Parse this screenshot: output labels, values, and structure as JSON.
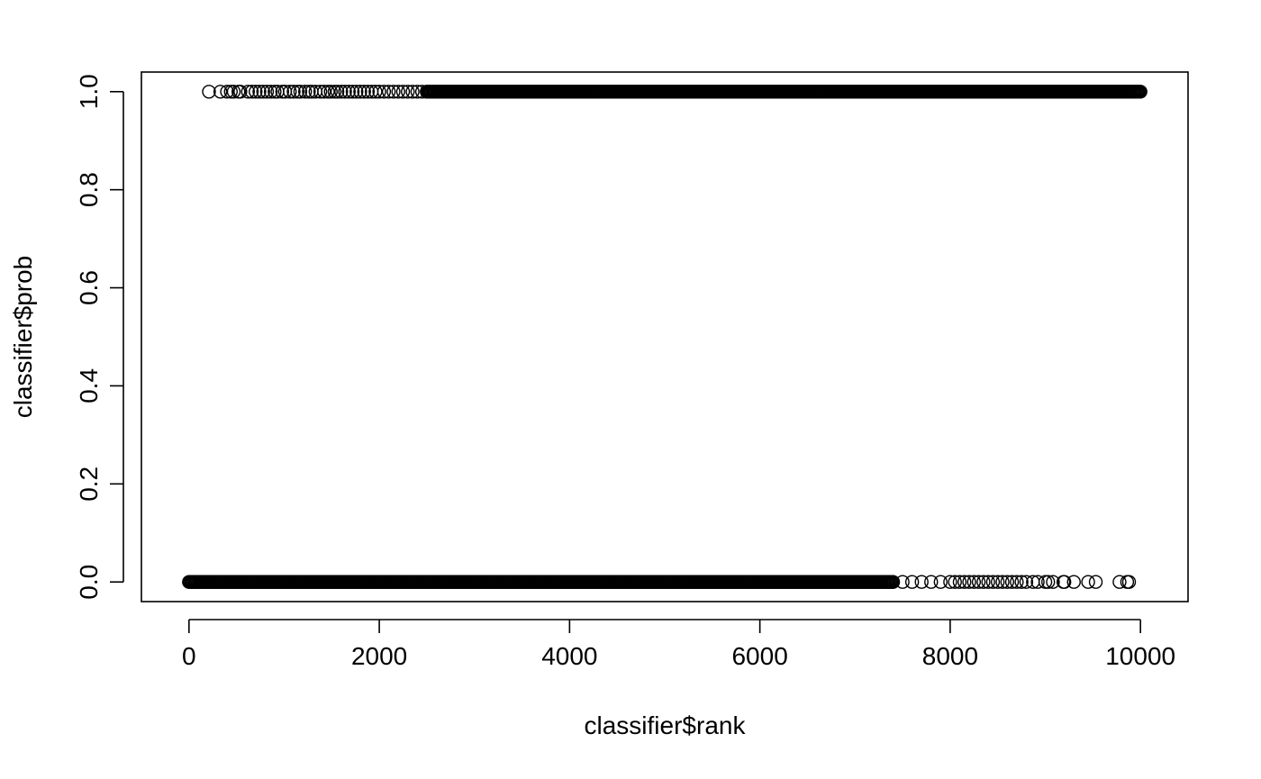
{
  "chart_data": {
    "type": "scatter",
    "title": "",
    "xlabel": "classifier$rank",
    "ylabel": "classifier$prob",
    "xlim": [
      -500,
      10500
    ],
    "ylim": [
      -0.04,
      1.04
    ],
    "xticks": [
      0,
      2000,
      4000,
      6000,
      8000,
      10000
    ],
    "xtick_labels": [
      "0",
      "2000",
      "4000",
      "6000",
      "8000",
      "10000"
    ],
    "yticks": [
      0.0,
      0.2,
      0.4,
      0.6,
      0.8,
      1.0
    ],
    "ytick_labels": [
      "0.0",
      "0.2",
      "0.4",
      "0.6",
      "0.8",
      "1.0"
    ],
    "grid": false,
    "marker": "open-circle",
    "series": [
      {
        "y": 1.0,
        "x": [
          210,
          330,
          400,
          440,
          470,
          520,
          540,
          620,
          660,
          700,
          740,
          780,
          820,
          860,
          900,
          930,
          980,
          1010,
          1060,
          1100,
          1140,
          1170,
          1220,
          1260,
          1290,
          1330,
          1380,
          1420,
          1460,
          1490,
          1530,
          1560,
          1600,
          1640,
          1680,
          1720,
          1760,
          1800,
          1840,
          1880,
          1920,
          1960,
          2000,
          2050,
          2100,
          2150,
          2200,
          2250,
          2300,
          2350,
          2400,
          2450,
          2500
        ],
        "dense_ranges": [
          [
            2500,
            10000
          ]
        ]
      },
      {
        "y": 0.0,
        "x": [
          7400,
          7500,
          7600,
          7700,
          7800,
          7900,
          8000,
          8050,
          8100,
          8150,
          8200,
          8250,
          8300,
          8350,
          8400,
          8450,
          8500,
          8550,
          8600,
          8650,
          8700,
          8750,
          8800,
          8870,
          8920,
          9000,
          9030,
          9080,
          9190,
          9200,
          9300,
          9450,
          9530,
          9780,
          9860,
          9880
        ],
        "dense_ranges": [
          [
            0,
            7400
          ]
        ]
      }
    ]
  }
}
